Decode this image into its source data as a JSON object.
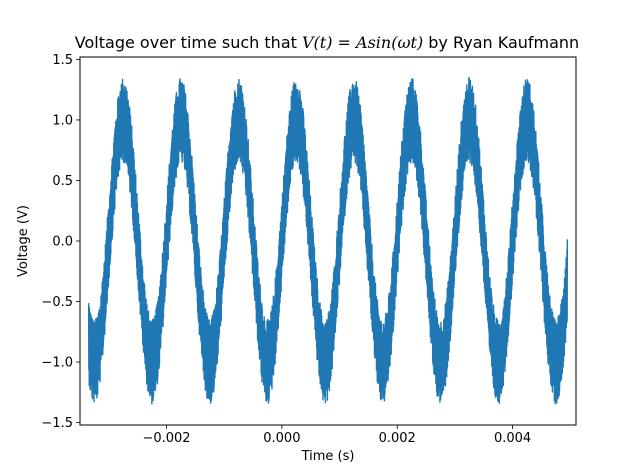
{
  "chart_data": {
    "type": "line",
    "title": {
      "prefix": "Voltage over time such that ",
      "math": "V(t) = Asin(ωt)",
      "suffix": " by Ryan Kaufmann"
    },
    "xlabel": "Time (s)",
    "ylabel": "Voltage (V)",
    "xlim": [
      -0.0035,
      0.0051
    ],
    "ylim": [
      -1.52,
      1.52
    ],
    "xticks": [
      {
        "value": -0.002,
        "label": "−0.002"
      },
      {
        "value": 0.0,
        "label": "0.000"
      },
      {
        "value": 0.002,
        "label": "0.002"
      },
      {
        "value": 0.004,
        "label": "0.004"
      }
    ],
    "yticks": [
      {
        "value": -1.5,
        "label": "−1.5"
      },
      {
        "value": -1.0,
        "label": "−1.0"
      },
      {
        "value": -0.5,
        "label": "−0.5"
      },
      {
        "value": 0.0,
        "label": "0.0"
      },
      {
        "value": 0.5,
        "label": "0.5"
      },
      {
        "value": 1.0,
        "label": "1.0"
      },
      {
        "value": 1.5,
        "label": "1.5"
      }
    ],
    "grid": false,
    "series": [
      {
        "color": "#1f77b4",
        "x_start": -0.00335,
        "x_end": 0.00495,
        "amplitude": 1.0,
        "period": 0.001,
        "peak_time": -0.00275,
        "noise_band": 0.35
      }
    ]
  }
}
